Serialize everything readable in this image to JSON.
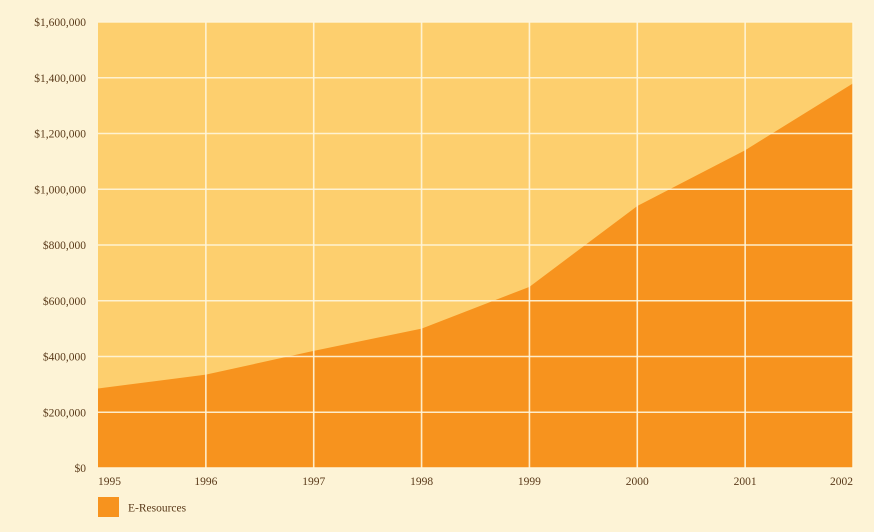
{
  "chart_data": {
    "type": "area",
    "x": [
      "1995",
      "1996",
      "1997",
      "1998",
      "1999",
      "2000",
      "2001",
      "2002"
    ],
    "series": [
      {
        "name": "E-Resources",
        "color": "#f7931e",
        "values": [
          285000,
          335000,
          420000,
          500000,
          650000,
          940000,
          1140000,
          1380000
        ]
      }
    ],
    "ylim": [
      0,
      1600000
    ],
    "yticks": [
      0,
      200000,
      400000,
      600000,
      800000,
      1000000,
      1200000,
      1400000,
      1600000
    ],
    "ytick_labels": [
      "$0",
      "$200,000",
      "$400,000",
      "$600,000",
      "$800,000",
      "$1,000,000",
      "$1,200,000",
      "$1,400,000",
      "$1,600,000"
    ],
    "grid": true,
    "legend_position": "bottom-left",
    "colors": {
      "plot_background": "#fdcf6e",
      "gridline": "#fff6dc",
      "area": "#f7931e",
      "page_background": "#fdf3d6"
    }
  }
}
